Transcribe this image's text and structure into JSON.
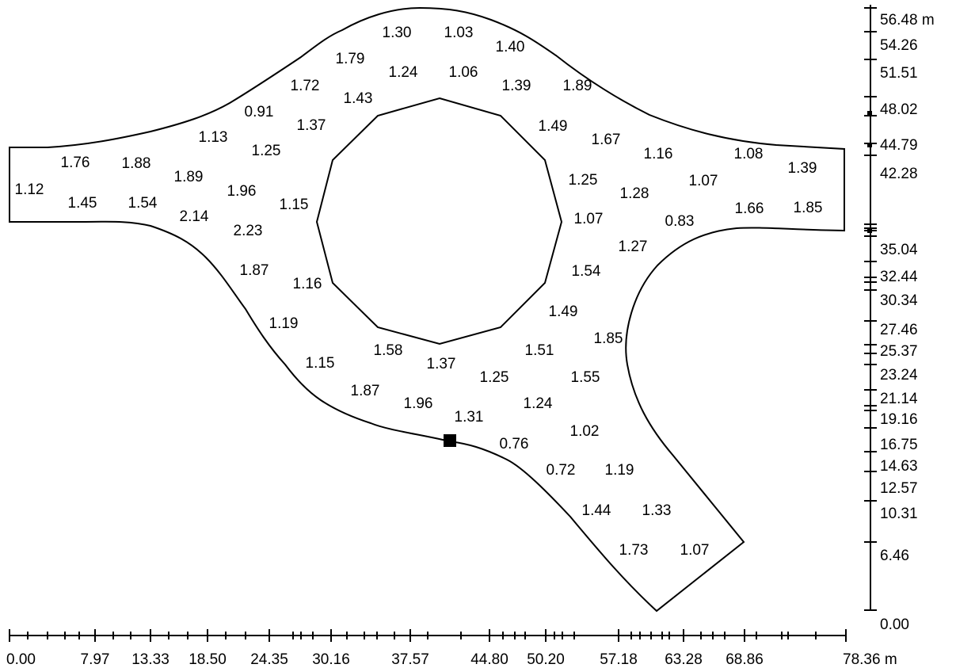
{
  "x_axis": {
    "unit": "m",
    "labels": [
      "0.00",
      "7.97",
      "13.33",
      "18.50",
      "24.35",
      "30.16",
      "37.57",
      "44.80",
      "50.20",
      "57.18",
      "63.28",
      "68.86",
      "78.36 m"
    ]
  },
  "y_axis": {
    "unit": "m",
    "labels": [
      "56.48 m",
      "54.26",
      "51.51",
      "48.02",
      "44.79",
      "42.28",
      "35.04",
      "32.44",
      "30.34",
      "27.46",
      "25.37",
      "23.24",
      "21.14",
      "19.16",
      "16.75",
      "14.63",
      "12.57",
      "10.31",
      "6.46",
      "0.00"
    ]
  },
  "values": [
    "1.30",
    "1.03",
    "1.40",
    "1.79",
    "1.24",
    "1.06",
    "1.72",
    "1.43",
    "1.39",
    "1.89",
    "0.91",
    "1.37",
    "1.49",
    "1.13",
    "1.25",
    "1.67",
    "1.16",
    "1.08",
    "1.76",
    "1.88",
    "1.39",
    "1.89",
    "1.96",
    "1.25",
    "1.07",
    "1.12",
    "1.28",
    "1.45",
    "1.54",
    "1.15",
    "1.07",
    "1.66",
    "1.85",
    "2.14",
    "2.23",
    "0.83",
    "1.27",
    "1.87",
    "1.16",
    "1.54",
    "1.19",
    "1.49",
    "1.85",
    "1.58",
    "1.51",
    "1.15",
    "1.37",
    "1.25",
    "1.55",
    "1.87",
    "1.96",
    "1.24",
    "1.31",
    "1.02",
    "0.76",
    "0.72",
    "1.19",
    "1.44",
    "1.33",
    "1.73",
    "1.07"
  ],
  "marker": "reference-point"
}
